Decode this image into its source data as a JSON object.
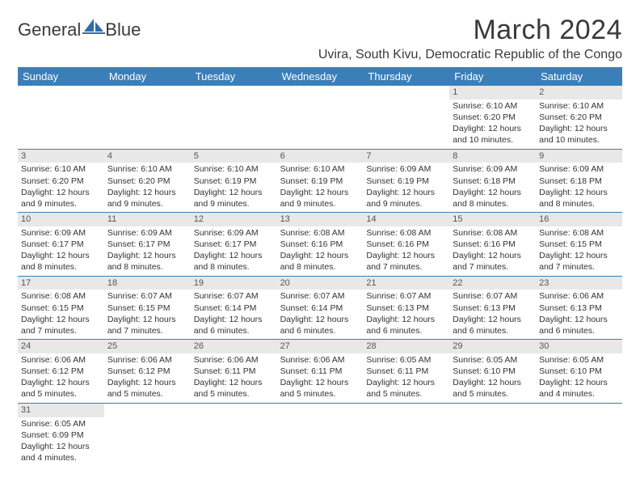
{
  "logo": {
    "text_a": "General",
    "text_b": "Blue"
  },
  "header": {
    "month_title": "March 2024",
    "location": "Uvira, South Kivu, Democratic Republic of the Congo"
  },
  "colors": {
    "header_bg": "#3b7fb9",
    "header_text": "#ffffff",
    "daynum_bg": "#e8e8e8",
    "border": "#3b7fb9"
  },
  "day_names": [
    "Sunday",
    "Monday",
    "Tuesday",
    "Wednesday",
    "Thursday",
    "Friday",
    "Saturday"
  ],
  "weeks": [
    [
      null,
      null,
      null,
      null,
      null,
      {
        "n": "1",
        "sr": "Sunrise: 6:10 AM",
        "ss": "Sunset: 6:20 PM",
        "d1": "Daylight: 12 hours",
        "d2": "and 10 minutes."
      },
      {
        "n": "2",
        "sr": "Sunrise: 6:10 AM",
        "ss": "Sunset: 6:20 PM",
        "d1": "Daylight: 12 hours",
        "d2": "and 10 minutes."
      }
    ],
    [
      {
        "n": "3",
        "sr": "Sunrise: 6:10 AM",
        "ss": "Sunset: 6:20 PM",
        "d1": "Daylight: 12 hours",
        "d2": "and 9 minutes."
      },
      {
        "n": "4",
        "sr": "Sunrise: 6:10 AM",
        "ss": "Sunset: 6:20 PM",
        "d1": "Daylight: 12 hours",
        "d2": "and 9 minutes."
      },
      {
        "n": "5",
        "sr": "Sunrise: 6:10 AM",
        "ss": "Sunset: 6:19 PM",
        "d1": "Daylight: 12 hours",
        "d2": "and 9 minutes."
      },
      {
        "n": "6",
        "sr": "Sunrise: 6:10 AM",
        "ss": "Sunset: 6:19 PM",
        "d1": "Daylight: 12 hours",
        "d2": "and 9 minutes."
      },
      {
        "n": "7",
        "sr": "Sunrise: 6:09 AM",
        "ss": "Sunset: 6:19 PM",
        "d1": "Daylight: 12 hours",
        "d2": "and 9 minutes."
      },
      {
        "n": "8",
        "sr": "Sunrise: 6:09 AM",
        "ss": "Sunset: 6:18 PM",
        "d1": "Daylight: 12 hours",
        "d2": "and 8 minutes."
      },
      {
        "n": "9",
        "sr": "Sunrise: 6:09 AM",
        "ss": "Sunset: 6:18 PM",
        "d1": "Daylight: 12 hours",
        "d2": "and 8 minutes."
      }
    ],
    [
      {
        "n": "10",
        "sr": "Sunrise: 6:09 AM",
        "ss": "Sunset: 6:17 PM",
        "d1": "Daylight: 12 hours",
        "d2": "and 8 minutes."
      },
      {
        "n": "11",
        "sr": "Sunrise: 6:09 AM",
        "ss": "Sunset: 6:17 PM",
        "d1": "Daylight: 12 hours",
        "d2": "and 8 minutes."
      },
      {
        "n": "12",
        "sr": "Sunrise: 6:09 AM",
        "ss": "Sunset: 6:17 PM",
        "d1": "Daylight: 12 hours",
        "d2": "and 8 minutes."
      },
      {
        "n": "13",
        "sr": "Sunrise: 6:08 AM",
        "ss": "Sunset: 6:16 PM",
        "d1": "Daylight: 12 hours",
        "d2": "and 8 minutes."
      },
      {
        "n": "14",
        "sr": "Sunrise: 6:08 AM",
        "ss": "Sunset: 6:16 PM",
        "d1": "Daylight: 12 hours",
        "d2": "and 7 minutes."
      },
      {
        "n": "15",
        "sr": "Sunrise: 6:08 AM",
        "ss": "Sunset: 6:16 PM",
        "d1": "Daylight: 12 hours",
        "d2": "and 7 minutes."
      },
      {
        "n": "16",
        "sr": "Sunrise: 6:08 AM",
        "ss": "Sunset: 6:15 PM",
        "d1": "Daylight: 12 hours",
        "d2": "and 7 minutes."
      }
    ],
    [
      {
        "n": "17",
        "sr": "Sunrise: 6:08 AM",
        "ss": "Sunset: 6:15 PM",
        "d1": "Daylight: 12 hours",
        "d2": "and 7 minutes."
      },
      {
        "n": "18",
        "sr": "Sunrise: 6:07 AM",
        "ss": "Sunset: 6:15 PM",
        "d1": "Daylight: 12 hours",
        "d2": "and 7 minutes."
      },
      {
        "n": "19",
        "sr": "Sunrise: 6:07 AM",
        "ss": "Sunset: 6:14 PM",
        "d1": "Daylight: 12 hours",
        "d2": "and 6 minutes."
      },
      {
        "n": "20",
        "sr": "Sunrise: 6:07 AM",
        "ss": "Sunset: 6:14 PM",
        "d1": "Daylight: 12 hours",
        "d2": "and 6 minutes."
      },
      {
        "n": "21",
        "sr": "Sunrise: 6:07 AM",
        "ss": "Sunset: 6:13 PM",
        "d1": "Daylight: 12 hours",
        "d2": "and 6 minutes."
      },
      {
        "n": "22",
        "sr": "Sunrise: 6:07 AM",
        "ss": "Sunset: 6:13 PM",
        "d1": "Daylight: 12 hours",
        "d2": "and 6 minutes."
      },
      {
        "n": "23",
        "sr": "Sunrise: 6:06 AM",
        "ss": "Sunset: 6:13 PM",
        "d1": "Daylight: 12 hours",
        "d2": "and 6 minutes."
      }
    ],
    [
      {
        "n": "24",
        "sr": "Sunrise: 6:06 AM",
        "ss": "Sunset: 6:12 PM",
        "d1": "Daylight: 12 hours",
        "d2": "and 5 minutes."
      },
      {
        "n": "25",
        "sr": "Sunrise: 6:06 AM",
        "ss": "Sunset: 6:12 PM",
        "d1": "Daylight: 12 hours",
        "d2": "and 5 minutes."
      },
      {
        "n": "26",
        "sr": "Sunrise: 6:06 AM",
        "ss": "Sunset: 6:11 PM",
        "d1": "Daylight: 12 hours",
        "d2": "and 5 minutes."
      },
      {
        "n": "27",
        "sr": "Sunrise: 6:06 AM",
        "ss": "Sunset: 6:11 PM",
        "d1": "Daylight: 12 hours",
        "d2": "and 5 minutes."
      },
      {
        "n": "28",
        "sr": "Sunrise: 6:05 AM",
        "ss": "Sunset: 6:11 PM",
        "d1": "Daylight: 12 hours",
        "d2": "and 5 minutes."
      },
      {
        "n": "29",
        "sr": "Sunrise: 6:05 AM",
        "ss": "Sunset: 6:10 PM",
        "d1": "Daylight: 12 hours",
        "d2": "and 5 minutes."
      },
      {
        "n": "30",
        "sr": "Sunrise: 6:05 AM",
        "ss": "Sunset: 6:10 PM",
        "d1": "Daylight: 12 hours",
        "d2": "and 4 minutes."
      }
    ],
    [
      {
        "n": "31",
        "sr": "Sunrise: 6:05 AM",
        "ss": "Sunset: 6:09 PM",
        "d1": "Daylight: 12 hours",
        "d2": "and 4 minutes."
      },
      null,
      null,
      null,
      null,
      null,
      null
    ]
  ]
}
